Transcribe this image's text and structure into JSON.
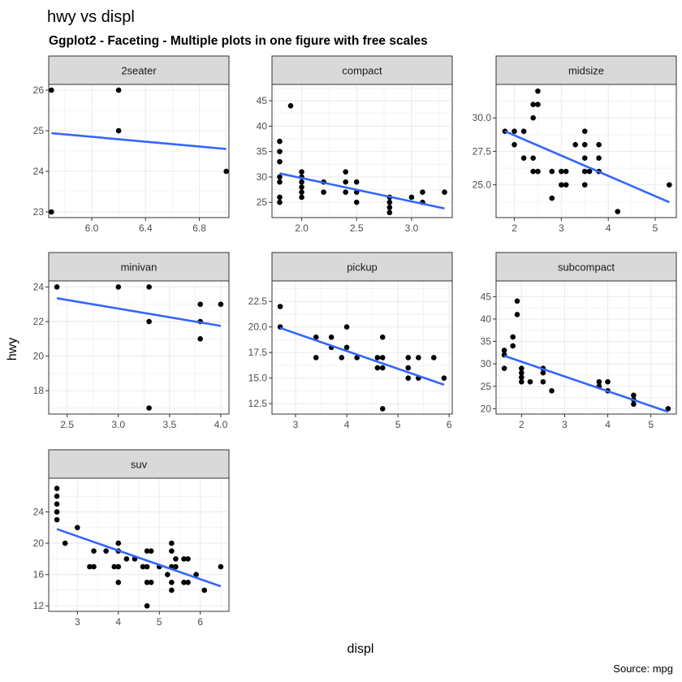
{
  "chart_data": {
    "type": "scatter",
    "title": "hwy vs displ",
    "subtitle": "Ggplot2 - Faceting - Multiple plots in one figure with free scales",
    "xlabel": "displ",
    "ylabel": "hwy",
    "caption": "Source: mpg",
    "grid": true,
    "colors": {
      "points": "#000000",
      "trend_line": "#3366FF",
      "strip_background": "#D9D9D9",
      "grid": "#EBEBEB",
      "panel_border": "#333333",
      "tick_label": "#4D4D4D"
    },
    "facets": [
      {
        "name": "2seater",
        "xlim": [
          5.68,
          7.02
        ],
        "ylim": [
          22.86,
          26.14
        ],
        "xticks": [
          6.0,
          6.4,
          6.8
        ],
        "xtick_labels": [
          "6.0",
          "6.4",
          "6.8"
        ],
        "yticks": [
          23,
          24,
          25,
          26
        ],
        "ytick_labels": [
          "23",
          "24",
          "25",
          "26"
        ],
        "points": [
          [
            5.7,
            26
          ],
          [
            5.7,
            23
          ],
          [
            6.2,
            26
          ],
          [
            6.2,
            25
          ],
          [
            7.0,
            24
          ]
        ],
        "trend": [
          [
            5.7,
            24.94
          ],
          [
            7.0,
            24.55
          ]
        ]
      },
      {
        "name": "compact",
        "xlim": [
          1.73,
          3.37
        ],
        "ylim": [
          22.0,
          48.2
        ],
        "xticks": [
          2.0,
          2.5,
          3.0
        ],
        "xtick_labels": [
          "2.0",
          "2.5",
          "3.0"
        ],
        "yticks": [
          25,
          30,
          35,
          40,
          45
        ],
        "ytick_labels": [
          "25",
          "30",
          "35",
          "40",
          "45"
        ],
        "points": [
          [
            1.8,
            25
          ],
          [
            1.8,
            26
          ],
          [
            1.8,
            29
          ],
          [
            1.8,
            30
          ],
          [
            1.8,
            33
          ],
          [
            1.8,
            35
          ],
          [
            1.8,
            37
          ],
          [
            1.9,
            44
          ],
          [
            2.0,
            26
          ],
          [
            2.0,
            27
          ],
          [
            2.0,
            28
          ],
          [
            2.0,
            29
          ],
          [
            2.0,
            30
          ],
          [
            2.0,
            31
          ],
          [
            2.2,
            27
          ],
          [
            2.2,
            29
          ],
          [
            2.4,
            27
          ],
          [
            2.4,
            29
          ],
          [
            2.4,
            31
          ],
          [
            2.5,
            25
          ],
          [
            2.5,
            27
          ],
          [
            2.5,
            29
          ],
          [
            2.8,
            23
          ],
          [
            2.8,
            24
          ],
          [
            2.8,
            25
          ],
          [
            2.8,
            26
          ],
          [
            3.0,
            26
          ],
          [
            3.1,
            25
          ],
          [
            3.1,
            27
          ],
          [
            3.3,
            27
          ]
        ],
        "trend": [
          [
            1.8,
            30.7
          ],
          [
            3.3,
            23.8
          ]
        ]
      },
      {
        "name": "midsize",
        "xlim": [
          1.61,
          5.45
        ],
        "ylim": [
          22.55,
          32.5
        ],
        "xticks": [
          2,
          3,
          4,
          5
        ],
        "xtick_labels": [
          "2",
          "3",
          "4",
          "5"
        ],
        "yticks": [
          25.0,
          27.5,
          30.0
        ],
        "ytick_labels": [
          "25.0",
          "27.5",
          "30.0"
        ],
        "points": [
          [
            1.8,
            29
          ],
          [
            2.0,
            29
          ],
          [
            2.0,
            28
          ],
          [
            2.2,
            29
          ],
          [
            2.2,
            27
          ],
          [
            2.4,
            30
          ],
          [
            2.4,
            31
          ],
          [
            2.4,
            27
          ],
          [
            2.4,
            26
          ],
          [
            2.5,
            32
          ],
          [
            2.5,
            31
          ],
          [
            2.5,
            26
          ],
          [
            2.8,
            26
          ],
          [
            2.8,
            24
          ],
          [
            3.0,
            26
          ],
          [
            3.0,
            25
          ],
          [
            3.1,
            26
          ],
          [
            3.1,
            25
          ],
          [
            3.3,
            28
          ],
          [
            3.5,
            29
          ],
          [
            3.5,
            28
          ],
          [
            3.5,
            27
          ],
          [
            3.5,
            26
          ],
          [
            3.5,
            25
          ],
          [
            3.6,
            26
          ],
          [
            3.8,
            28
          ],
          [
            3.8,
            27
          ],
          [
            3.8,
            26
          ],
          [
            4.2,
            23
          ],
          [
            5.3,
            25
          ]
        ],
        "trend": [
          [
            1.8,
            29.0
          ],
          [
            5.3,
            23.7
          ]
        ]
      },
      {
        "name": "minivan",
        "xlim": [
          2.32,
          4.08
        ],
        "ylim": [
          16.65,
          24.35
        ],
        "xticks": [
          2.5,
          3.0,
          3.5,
          4.0
        ],
        "xtick_labels": [
          "2.5",
          "3.0",
          "3.5",
          "4.0"
        ],
        "yticks": [
          18,
          20,
          22,
          24
        ],
        "ytick_labels": [
          "18",
          "20",
          "22",
          "24"
        ],
        "points": [
          [
            2.4,
            24
          ],
          [
            3.0,
            24
          ],
          [
            3.3,
            24
          ],
          [
            3.3,
            22
          ],
          [
            3.3,
            17
          ],
          [
            3.8,
            23
          ],
          [
            3.8,
            22
          ],
          [
            3.8,
            21
          ],
          [
            4.0,
            23
          ]
        ],
        "trend": [
          [
            2.4,
            23.35
          ],
          [
            4.0,
            21.75
          ]
        ]
      },
      {
        "name": "pickup",
        "xlim": [
          2.54,
          6.06
        ],
        "ylim": [
          11.48,
          24.5
        ],
        "xticks": [
          3,
          4,
          5,
          6
        ],
        "xtick_labels": [
          "3",
          "4",
          "5",
          "6"
        ],
        "yticks": [
          12.5,
          15.0,
          17.5,
          20.0,
          22.5
        ],
        "ytick_labels": [
          "12.5",
          "15.0",
          "17.5",
          "20.0",
          "22.5"
        ],
        "points": [
          [
            2.7,
            22
          ],
          [
            2.7,
            20
          ],
          [
            3.4,
            19
          ],
          [
            3.4,
            17
          ],
          [
            3.7,
            19
          ],
          [
            3.7,
            18
          ],
          [
            3.9,
            17
          ],
          [
            4.0,
            20
          ],
          [
            4.0,
            18
          ],
          [
            4.2,
            17
          ],
          [
            4.6,
            17
          ],
          [
            4.6,
            16
          ],
          [
            4.7,
            19
          ],
          [
            4.7,
            17
          ],
          [
            4.7,
            16
          ],
          [
            4.7,
            12
          ],
          [
            5.2,
            17
          ],
          [
            5.2,
            16
          ],
          [
            5.2,
            15
          ],
          [
            5.4,
            17
          ],
          [
            5.4,
            15
          ],
          [
            5.7,
            17
          ],
          [
            5.9,
            15
          ]
        ],
        "trend": [
          [
            2.7,
            19.9
          ],
          [
            5.9,
            14.35
          ]
        ]
      },
      {
        "name": "subcompact",
        "xlim": [
          1.41,
          5.59
        ],
        "ylim": [
          18.8,
          48.5
        ],
        "xticks": [
          2,
          3,
          4,
          5
        ],
        "xtick_labels": [
          "2",
          "3",
          "4",
          "5"
        ],
        "yticks": [
          20,
          25,
          30,
          35,
          40,
          45
        ],
        "ytick_labels": [
          "20",
          "25",
          "30",
          "35",
          "40",
          "45"
        ],
        "points": [
          [
            1.6,
            33
          ],
          [
            1.6,
            32
          ],
          [
            1.6,
            29
          ],
          [
            1.8,
            36
          ],
          [
            1.8,
            34
          ],
          [
            1.9,
            44
          ],
          [
            1.9,
            41
          ],
          [
            2.0,
            29
          ],
          [
            2.0,
            28
          ],
          [
            2.0,
            27
          ],
          [
            2.0,
            26
          ],
          [
            2.2,
            26
          ],
          [
            2.5,
            29
          ],
          [
            2.5,
            28
          ],
          [
            2.5,
            26
          ],
          [
            2.7,
            24
          ],
          [
            3.8,
            26
          ],
          [
            3.8,
            25
          ],
          [
            4.0,
            26
          ],
          [
            4.0,
            24
          ],
          [
            4.6,
            23
          ],
          [
            4.6,
            22
          ],
          [
            4.6,
            21
          ],
          [
            5.4,
            20
          ]
        ],
        "trend": [
          [
            1.6,
            31.8
          ],
          [
            5.4,
            19.3
          ]
        ]
      },
      {
        "name": "suv",
        "xlim": [
          2.3,
          6.7
        ],
        "ylim": [
          11.3,
          28.3
        ],
        "xticks": [
          3,
          4,
          5,
          6
        ],
        "xtick_labels": [
          "3",
          "4",
          "5",
          "6"
        ],
        "yticks": [
          12,
          16,
          20,
          24
        ],
        "ytick_labels": [
          "12",
          "16",
          "20",
          "24"
        ],
        "points": [
          [
            2.5,
            27
          ],
          [
            2.5,
            26
          ],
          [
            2.5,
            25
          ],
          [
            2.5,
            24
          ],
          [
            2.5,
            23
          ],
          [
            2.7,
            20
          ],
          [
            3.0,
            22
          ],
          [
            3.3,
            17
          ],
          [
            3.4,
            19
          ],
          [
            3.4,
            17
          ],
          [
            3.7,
            19
          ],
          [
            3.9,
            17
          ],
          [
            4.0,
            20
          ],
          [
            4.0,
            19
          ],
          [
            4.0,
            17
          ],
          [
            4.0,
            15
          ],
          [
            4.2,
            18
          ],
          [
            4.4,
            18
          ],
          [
            4.6,
            17
          ],
          [
            4.7,
            19
          ],
          [
            4.7,
            17
          ],
          [
            4.7,
            15
          ],
          [
            4.7,
            12
          ],
          [
            4.8,
            19
          ],
          [
            4.8,
            15
          ],
          [
            5.0,
            17
          ],
          [
            5.2,
            16
          ],
          [
            5.3,
            20
          ],
          [
            5.3,
            19
          ],
          [
            5.3,
            17
          ],
          [
            5.3,
            15
          ],
          [
            5.3,
            14
          ],
          [
            5.4,
            17
          ],
          [
            5.4,
            18
          ],
          [
            5.6,
            18
          ],
          [
            5.6,
            15
          ],
          [
            5.7,
            18
          ],
          [
            5.7,
            15
          ],
          [
            5.9,
            16
          ],
          [
            6.1,
            14
          ],
          [
            6.5,
            17
          ]
        ],
        "trend": [
          [
            2.5,
            21.8
          ],
          [
            6.5,
            14.5
          ]
        ]
      }
    ]
  }
}
